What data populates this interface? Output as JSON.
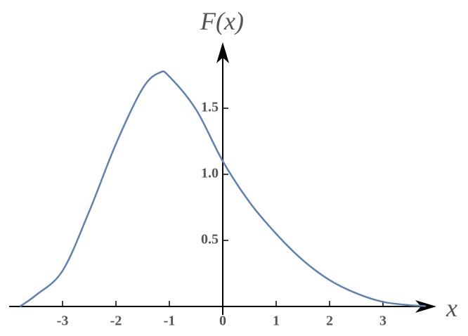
{
  "chart_data": {
    "type": "line",
    "x_label": "x",
    "y_label": "F(x)",
    "x": [
      -3.8,
      -3.5,
      -3,
      -2.5,
      -2,
      -1.5,
      -1.18,
      -1,
      -0.5,
      0,
      0.5,
      1,
      1.5,
      2,
      2.5,
      3,
      3.5,
      3.8
    ],
    "values": [
      0,
      0.085,
      0.27,
      0.72,
      1.23,
      1.65,
      1.77,
      1.74,
      1.49,
      1.1,
      0.79,
      0.55,
      0.35,
      0.2,
      0.1,
      0.035,
      0.01,
      0.003
    ],
    "color": "#5e81b5",
    "xlim": [
      -4,
      4
    ],
    "ylim": [
      0,
      2
    ],
    "xticks": [
      -3,
      -2,
      -1,
      0,
      1,
      2,
      3
    ],
    "yticks": [
      0.5,
      {
        "value": 1,
        "label": "1.0"
      },
      1.5
    ]
  }
}
